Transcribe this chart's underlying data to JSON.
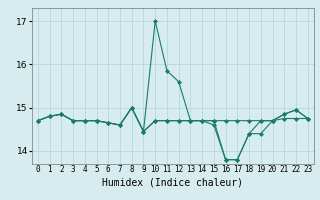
{
  "title": "",
  "xlabel": "Humidex (Indice chaleur)",
  "ylabel": "",
  "bg_color": "#d6ecee",
  "grid_color": "#b8d8db",
  "line_color": "#1a7a6e",
  "marker": "D",
  "marker_size": 2,
  "line_width": 0.8,
  "xlim": [
    -0.5,
    23.5
  ],
  "ylim": [
    13.7,
    17.3
  ],
  "yticks": [
    14,
    15,
    16,
    17
  ],
  "xtick_labels": [
    "0",
    "1",
    "2",
    "3",
    "4",
    "5",
    "6",
    "7",
    "8",
    "9",
    "10",
    "11",
    "12",
    "13",
    "14",
    "15",
    "16",
    "17",
    "18",
    "19",
    "20",
    "21",
    "22",
    "23"
  ],
  "series": [
    [
      14.7,
      14.8,
      14.85,
      14.7,
      14.7,
      14.7,
      14.65,
      14.6,
      15.0,
      14.45,
      14.7,
      14.7,
      14.7,
      14.7,
      14.7,
      14.7,
      14.7,
      14.7,
      14.7,
      14.7,
      14.7,
      14.75,
      14.75,
      14.75
    ],
    [
      14.7,
      14.8,
      14.85,
      14.7,
      14.7,
      14.7,
      14.65,
      14.6,
      15.0,
      14.45,
      17.0,
      15.85,
      15.6,
      14.7,
      14.7,
      14.7,
      13.8,
      13.8,
      14.4,
      14.4,
      14.7,
      14.85,
      14.95,
      14.75
    ],
    [
      14.7,
      14.8,
      14.85,
      14.7,
      14.7,
      14.7,
      14.65,
      14.6,
      15.0,
      14.45,
      14.7,
      14.7,
      14.7,
      14.7,
      14.7,
      14.6,
      13.8,
      13.8,
      14.4,
      14.7,
      14.7,
      14.85,
      14.95,
      14.75
    ]
  ]
}
